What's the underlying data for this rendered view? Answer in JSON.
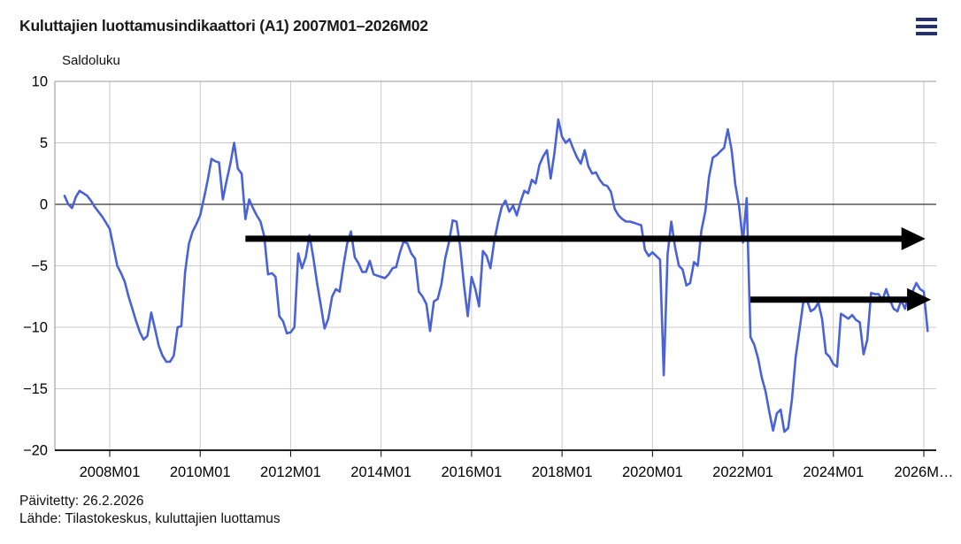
{
  "header": {
    "title": "Kuluttajien luottamusindikaattori (A1) 2007M01–2026M02",
    "menu_icon": "hamburger-menu-icon"
  },
  "footer": {
    "updated": "Päivitetty: 26.2.2026",
    "source": "Lähde: Tilastokeskus, kuluttajien luottamus"
  },
  "colors": {
    "series_line": "#4a62d8",
    "menu_icon": "#263069",
    "zero_line": "#000000",
    "gridline": "#cbcbcb",
    "frame": "#9a9a9a",
    "arrow": "#000000"
  },
  "chart_data": {
    "type": "line",
    "title": "Kuluttajien luottamusindikaattori (A1) 2007M01–2026M02",
    "ylabel": "Saldoluku",
    "xlabel": "",
    "grid": true,
    "legend": "none",
    "ylim": [
      -20,
      10
    ],
    "x_range": {
      "start": "2007M01",
      "end": "2026M02",
      "frequency": "monthly",
      "points": 230
    },
    "y_ticks": [
      {
        "label": "10",
        "value": 10
      },
      {
        "label": "5",
        "value": 5
      },
      {
        "label": "0",
        "value": 0
      },
      {
        "label": "−5",
        "value": -5
      },
      {
        "label": "−10",
        "value": -10
      },
      {
        "label": "−15",
        "value": -15
      },
      {
        "label": "−20",
        "value": -20
      }
    ],
    "x_ticks": [
      {
        "label": "2008M01",
        "index": 12
      },
      {
        "label": "2010M01",
        "index": 36
      },
      {
        "label": "2012M01",
        "index": 60
      },
      {
        "label": "2014M01",
        "index": 84
      },
      {
        "label": "2016M01",
        "index": 108
      },
      {
        "label": "2018M01",
        "index": 132
      },
      {
        "label": "2020M01",
        "index": 156
      },
      {
        "label": "2022M01",
        "index": 180
      },
      {
        "label": "2024M01",
        "index": 204
      },
      {
        "label": "2026M…",
        "index": 228
      }
    ],
    "series": [
      {
        "name": "Kuluttajien luottamusindikaattori (A1)",
        "color": "#4a62d8",
        "values": [
          0.7,
          0.0,
          -0.3,
          0.6,
          1.1,
          0.9,
          0.7,
          0.3,
          -0.2,
          -0.6,
          -1.0,
          -1.5,
          -2.0,
          -3.5,
          -5.0,
          -5.6,
          -6.3,
          -7.5,
          -8.5,
          -9.5,
          -10.4,
          -11.0,
          -10.7,
          -8.8,
          -10.1,
          -11.5,
          -12.3,
          -12.8,
          -12.8,
          -12.3,
          -10.0,
          -9.9,
          -5.5,
          -3.2,
          -2.2,
          -1.6,
          -0.9,
          0.5,
          2.0,
          3.7,
          3.5,
          3.4,
          0.4,
          1.9,
          3.3,
          5.0,
          2.9,
          2.5,
          -1.2,
          0.4,
          -0.3,
          -0.9,
          -1.4,
          -2.6,
          -5.7,
          -5.6,
          -5.9,
          -9.1,
          -9.5,
          -10.5,
          -10.4,
          -10.0,
          -4.0,
          -5.2,
          -4.3,
          -2.5,
          -4.3,
          -6.4,
          -8.2,
          -10.1,
          -9.3,
          -7.5,
          -6.9,
          -7.1,
          -5.0,
          -3.2,
          -2.2,
          -4.3,
          -4.8,
          -5.5,
          -5.5,
          -4.6,
          -5.7,
          -5.8,
          -5.9,
          -6.0,
          -5.7,
          -5.2,
          -5.1,
          -3.9,
          -3.0,
          -3.2,
          -4.0,
          -4.4,
          -7.1,
          -7.5,
          -8.1,
          -10.3,
          -7.9,
          -7.7,
          -6.5,
          -4.4,
          -3.1,
          -1.3,
          -1.4,
          -3.5,
          -6.6,
          -9.1,
          -5.9,
          -6.9,
          -8.3,
          -3.8,
          -4.2,
          -5.2,
          -3.0,
          -1.5,
          -0.2,
          0.3,
          -0.6,
          -0.1,
          -0.9,
          0.2,
          1.1,
          0.9,
          2.0,
          1.7,
          3.2,
          3.9,
          4.4,
          2.1,
          4.2,
          6.9,
          5.5,
          5.0,
          5.3,
          4.5,
          3.8,
          3.3,
          4.4,
          3.1,
          2.5,
          2.6,
          2.0,
          1.6,
          1.5,
          1.0,
          -0.4,
          -0.9,
          -1.2,
          -1.4,
          -1.4,
          -1.5,
          -1.6,
          -1.7,
          -3.7,
          -4.2,
          -3.9,
          -4.2,
          -4.5,
          -13.9,
          -4.1,
          -1.4,
          -3.5,
          -5.0,
          -5.3,
          -6.6,
          -6.4,
          -4.7,
          -5.0,
          -2.1,
          -0.6,
          2.2,
          3.8,
          4.0,
          4.3,
          4.6,
          6.1,
          4.4,
          1.6,
          -0.2,
          -3.1,
          0.5,
          -10.8,
          -11.4,
          -12.5,
          -14.1,
          -15.2,
          -16.9,
          -18.4,
          -17.0,
          -16.7,
          -18.5,
          -18.2,
          -15.9,
          -12.4,
          -10.2,
          -8.0,
          -7.8,
          -8.7,
          -8.5,
          -8.0,
          -9.3,
          -12.1,
          -12.4,
          -13.0,
          -13.2,
          -8.9,
          -9.1,
          -9.3,
          -9.0,
          -9.4,
          -9.6,
          -12.2,
          -11.0,
          -7.2,
          -7.3,
          -7.3,
          -7.8,
          -6.9,
          -7.8,
          -8.5,
          -8.7,
          -7.8,
          -8.5,
          -7.3,
          -7.1,
          -6.4,
          -6.9,
          -7.1,
          -10.3
        ]
      }
    ],
    "annotations": {
      "arrows": [
        {
          "name": "upper-horizontal-arrow",
          "start_month": "2011M01",
          "start_index": 48,
          "end_index": 228.4,
          "level": -2.8
        },
        {
          "name": "lower-horizontal-arrow",
          "start_month": "2022M03",
          "start_index": 182,
          "end_index": 229.9,
          "level": -7.75
        }
      ]
    }
  }
}
